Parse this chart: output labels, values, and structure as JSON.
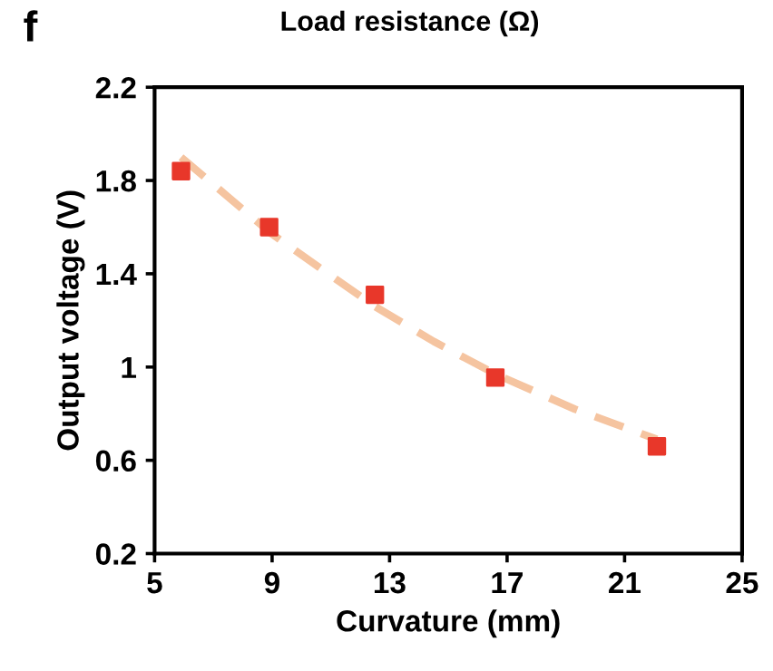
{
  "chart_data": {
    "type": "scatter",
    "title": "Load resistance (Ω)",
    "annotations": [
      "f"
    ],
    "xlabel": "Curvature (mm)",
    "ylabel": "Output voltage (V)",
    "xlim": [
      5,
      25
    ],
    "xticks": [
      5,
      9,
      13,
      17,
      21,
      25
    ],
    "ylim": [
      0.2,
      2.2
    ],
    "yticks": [
      0.2,
      0.6,
      1,
      1.4,
      1.8,
      2.2
    ],
    "grid": false,
    "legend": false,
    "series": [
      {
        "color": "#e8372a",
        "marker": "square",
        "x": [
          5.9,
          8.9,
          12.5,
          16.6,
          22.1
        ],
        "values": [
          1.84,
          1.6,
          1.31,
          0.955,
          0.66
        ]
      },
      {
        "type": "line",
        "color": "#f5c4a0",
        "line_style": "dashed",
        "marker": "none",
        "x": [
          5.9,
          7.5,
          9,
          10.8,
          12.5,
          14.5,
          16.6,
          19.3,
          22.1
        ],
        "values": [
          1.9,
          1.73,
          1.57,
          1.41,
          1.26,
          1.11,
          0.97,
          0.82,
          0.69
        ]
      }
    ]
  }
}
